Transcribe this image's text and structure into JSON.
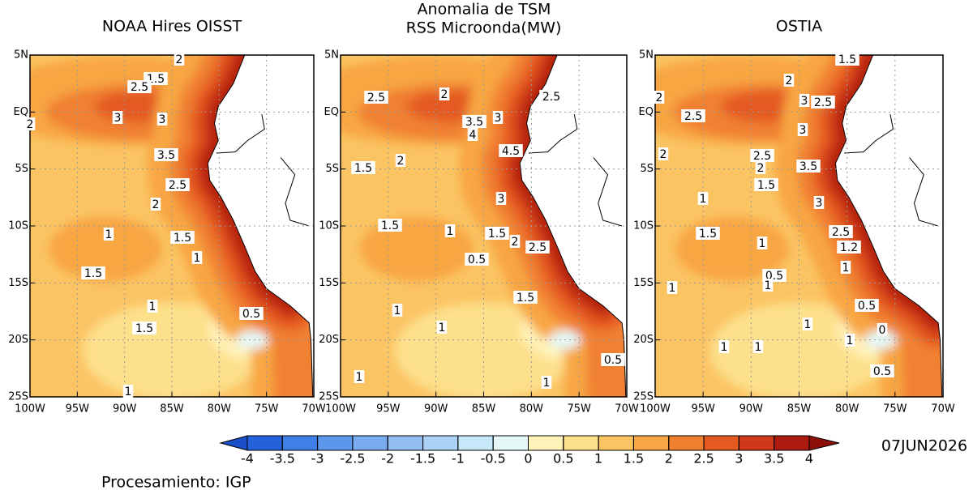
{
  "header": {
    "title": "Anomalia de TSM"
  },
  "panels": [
    {
      "title": "NOAA Hires OISST",
      "contour_labels": [
        "2",
        "1.5",
        "2.5",
        "3",
        "2",
        "3",
        "3.5",
        "2.5",
        "2",
        "1",
        "1.5",
        "1",
        "1.5",
        "1",
        "1.5",
        "0.5",
        "1"
      ]
    },
    {
      "title": "RSS Microonda(MW)",
      "contour_labels": [
        "2.5",
        "2",
        "2.5",
        "3.5",
        "3",
        "4",
        "4.5",
        "1.5",
        "2",
        "3",
        "1.5",
        "1",
        "1.5",
        "2",
        "2.5",
        "0.5",
        "1.5",
        "1",
        "1",
        "0.5",
        "1",
        "1"
      ]
    },
    {
      "title": "OSTIA",
      "contour_labels": [
        "1.5",
        "2",
        "2",
        "2.5",
        "3",
        "2.5",
        "3",
        "2",
        "2.5",
        "2",
        "3.5",
        "1.5",
        "3",
        "1",
        "1.5",
        "1",
        "2.5",
        "1.2",
        "1",
        "0.5",
        "1",
        "1",
        "0.5",
        "1",
        "1",
        "0",
        "1",
        "1",
        "0.5"
      ]
    }
  ],
  "lat_labels": [
    "5N",
    "EQ",
    "5S",
    "10S",
    "15S",
    "20S",
    "25S"
  ],
  "lon_labels": [
    "100W",
    "95W",
    "90W",
    "85W",
    "80W",
    "75W",
    "70W"
  ],
  "colorbar": {
    "ticks": [
      -4,
      -3.5,
      -3,
      -2.5,
      -2,
      -1.5,
      -1,
      -0.5,
      0,
      0.5,
      1,
      1.5,
      2,
      2.5,
      3,
      3.5,
      4
    ],
    "colors": [
      "#2462dc",
      "#3f7fe6",
      "#5b97ea",
      "#78acee",
      "#92bef1",
      "#abd2f4",
      "#c7e8f8",
      "#e4f7f6",
      "#fff2b8",
      "#fde08c",
      "#fbc463",
      "#f8a643",
      "#f08030",
      "#e45a20",
      "#cf3818",
      "#ad1a10"
    ],
    "extend_colors": [
      "#1a4fc8",
      "#8c1008"
    ]
  },
  "date": "07JUN2026",
  "credit": "Procesamiento: IGP"
}
